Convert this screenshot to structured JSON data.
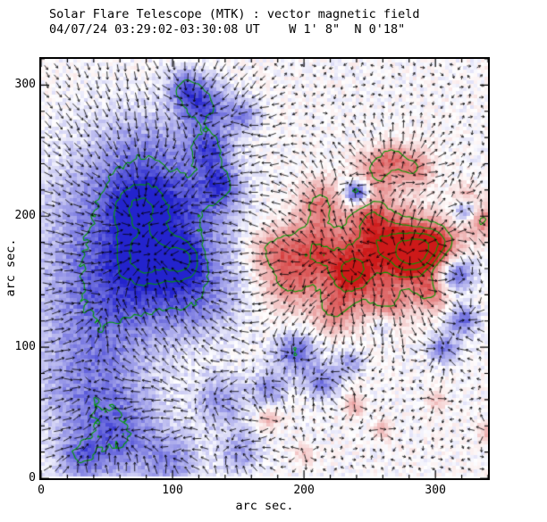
{
  "header": {
    "line1": "Solar Flare Telescope (MTK) : vector magnetic field",
    "line2": "04/07/24 03:29:02-03:30:08 UT    W 1' 8\"  N 0'18\""
  },
  "axes": {
    "x_label": "arc sec.",
    "y_label": "arc sec.",
    "x_ticks": [
      0,
      100,
      200,
      300
    ],
    "y_ticks": [
      0,
      100,
      200,
      300
    ],
    "x_range": [
      0,
      340
    ],
    "y_range": [
      0,
      320
    ],
    "minor_tick_step": 20
  },
  "colors": {
    "positive": "#cd1919",
    "negative": "#2323cd",
    "contour": "#009b00",
    "arrows": "#000000",
    "frame": "#000000",
    "background": "#ffffff"
  },
  "chart_data": {
    "type": "heatmap",
    "title": "Solar Flare Telescope (MTK) : vector magnetic field",
    "subtitle": "04/07/24 03:29:02-03:30:08 UT    W 1' 8\"  N 0'18\"",
    "xlabel": "arc sec.",
    "ylabel": "arc sec.",
    "xlim": [
      0,
      340
    ],
    "ylim": [
      0,
      320
    ],
    "grid": false,
    "contour_levels": [
      0.45,
      0.7,
      0.95,
      1.2
    ],
    "noise_amplitude": 0.16,
    "arrow_spacing_px": 11,
    "field_sources": [
      [
        55,
        195,
        40,
        -0.34
      ],
      [
        45,
        130,
        35,
        -0.32
      ],
      [
        90,
        165,
        30,
        -0.34
      ],
      [
        80,
        240,
        28,
        -0.3
      ],
      [
        120,
        140,
        22,
        -0.26
      ],
      [
        35,
        65,
        30,
        -0.3
      ],
      [
        120,
        210,
        22,
        -0.24
      ],
      [
        75,
        205,
        13,
        -0.45
      ],
      [
        80,
        170,
        11,
        -0.52
      ],
      [
        107,
        167,
        9,
        -0.55
      ],
      [
        122,
        285,
        13,
        -0.5
      ],
      [
        128,
        252,
        11,
        -0.45
      ],
      [
        136,
        225,
        10,
        -0.4
      ],
      [
        152,
        278,
        9,
        -0.35
      ],
      [
        108,
        300,
        10,
        -0.35
      ],
      [
        240,
        219,
        8,
        -0.85
      ],
      [
        313,
        158,
        10,
        -0.6
      ],
      [
        320,
        122,
        8,
        -0.45
      ],
      [
        305,
        100,
        8,
        -0.4
      ],
      [
        322,
        205,
        7,
        -0.4
      ],
      [
        258,
        120,
        7,
        -0.3
      ],
      [
        192,
        97,
        11,
        -0.45
      ],
      [
        213,
        75,
        9,
        -0.4
      ],
      [
        172,
        70,
        9,
        -0.35
      ],
      [
        233,
        90,
        7,
        -0.3
      ],
      [
        60,
        30,
        22,
        -0.35
      ],
      [
        100,
        15,
        14,
        -0.3
      ],
      [
        150,
        22,
        11,
        -0.3
      ],
      [
        28,
        15,
        12,
        -0.3
      ],
      [
        135,
        60,
        14,
        -0.3
      ],
      [
        280,
        172,
        20,
        0.75
      ],
      [
        281,
        171,
        10,
        0.5
      ],
      [
        235,
        158,
        18,
        0.6
      ],
      [
        236,
        156,
        9,
        0.35
      ],
      [
        206,
        178,
        16,
        0.55
      ],
      [
        255,
        188,
        16,
        0.5
      ],
      [
        300,
        178,
        12,
        0.55
      ],
      [
        188,
        150,
        14,
        0.45
      ],
      [
        222,
        128,
        12,
        0.4
      ],
      [
        262,
        132,
        11,
        0.4
      ],
      [
        296,
        142,
        9,
        0.4
      ],
      [
        212,
        212,
        12,
        0.45
      ],
      [
        246,
        206,
        10,
        0.35
      ],
      [
        175,
        175,
        12,
        0.4
      ],
      [
        252,
        232,
        12,
        0.5
      ],
      [
        283,
        238,
        10,
        0.45
      ],
      [
        266,
        247,
        8,
        0.35
      ],
      [
        335,
        198,
        9,
        0.5
      ],
      [
        322,
        218,
        6,
        0.3
      ],
      [
        237,
        57,
        6,
        0.3
      ],
      [
        258,
        38,
        5,
        0.28
      ],
      [
        172,
        47,
        6,
        0.28
      ],
      [
        199,
        20,
        5,
        0.25
      ],
      [
        338,
        37,
        5,
        0.3
      ],
      [
        300,
        60,
        5,
        0.25
      ]
    ]
  }
}
